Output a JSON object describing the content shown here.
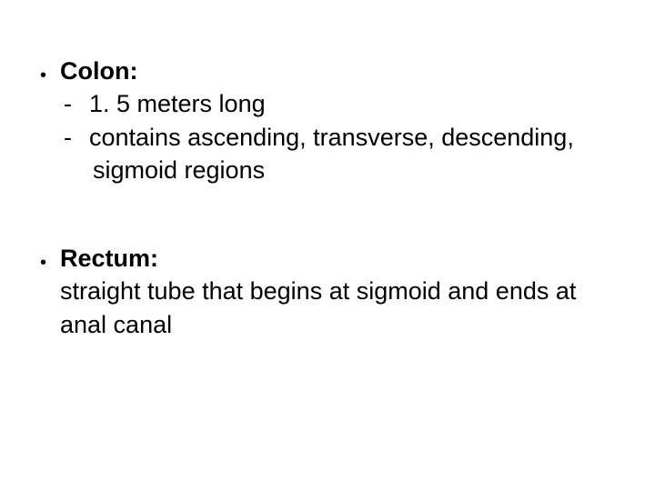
{
  "slide": {
    "background_color": "#ffffff",
    "text_color": "#000000",
    "font_family": "Arial, sans-serif",
    "title_fontsize": 27,
    "body_fontsize": 27,
    "sections": [
      {
        "heading": "Colon:",
        "subitems": [
          {
            "marker": "-",
            "text": "1. 5 meters long"
          },
          {
            "marker": "-",
            "text": " contains ascending, transverse, descending,",
            "continuation": "sigmoid regions"
          }
        ]
      },
      {
        "heading": "Rectum:",
        "body": "straight tube that begins at sigmoid and ends at anal canal"
      }
    ],
    "bullet_symbol": "•"
  }
}
